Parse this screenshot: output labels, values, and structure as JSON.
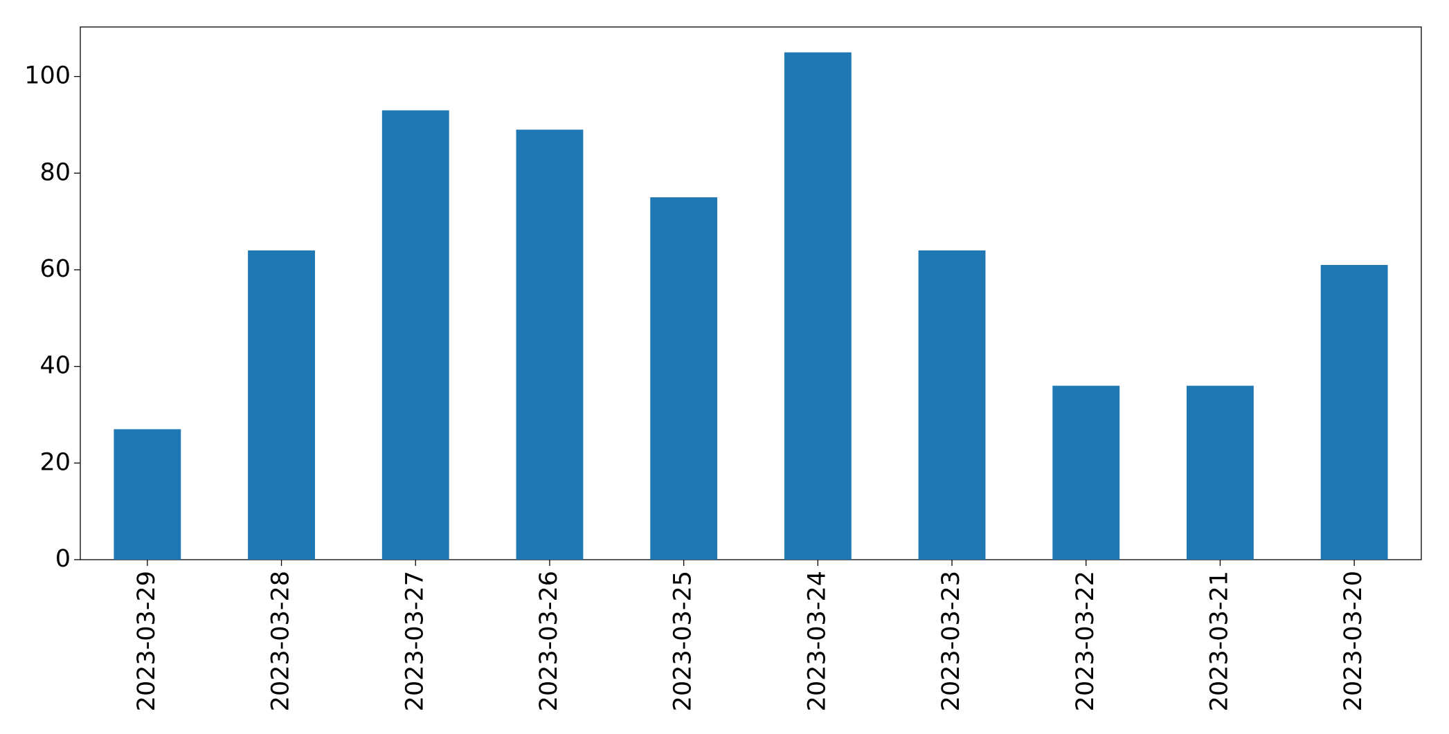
{
  "chart_data": {
    "type": "bar",
    "categories": [
      "2023-03-29",
      "2023-03-28",
      "2023-03-27",
      "2023-03-26",
      "2023-03-25",
      "2023-03-24",
      "2023-03-23",
      "2023-03-22",
      "2023-03-21",
      "2023-03-20"
    ],
    "values": [
      27,
      64,
      93,
      89,
      75,
      105,
      64,
      36,
      36,
      61
    ],
    "color": "#1f77b4",
    "ylim": [
      0,
      110.25
    ],
    "yticks": [
      0,
      20,
      40,
      60,
      80,
      100
    ],
    "grid": false
  }
}
